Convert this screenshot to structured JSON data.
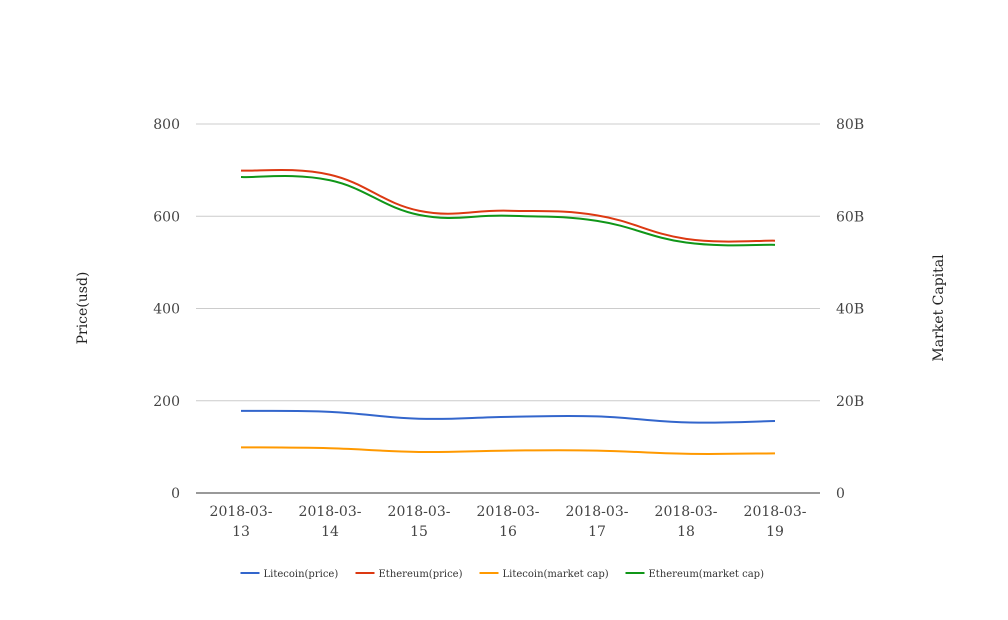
{
  "chart_data": {
    "type": "line",
    "title": "",
    "x_categories": [
      [
        "2018-03-",
        "13"
      ],
      [
        "2018-03-",
        "14"
      ],
      [
        "2018-03-",
        "15"
      ],
      [
        "2018-03-",
        "16"
      ],
      [
        "2018-03-",
        "17"
      ],
      [
        "2018-03-",
        "18"
      ],
      [
        "2018-03-",
        "19"
      ]
    ],
    "y_left": {
      "label": "Price(usd)",
      "range": [
        0,
        800
      ],
      "ticks": [
        "0",
        "200",
        "400",
        "600",
        "800"
      ],
      "tick_values": [
        0,
        200,
        400,
        600,
        800
      ]
    },
    "y_right": {
      "label": "Market Capital",
      "range": [
        0,
        80000000000
      ],
      "ticks": [
        "0",
        "20B",
        "40B",
        "60B",
        "80B"
      ],
      "tick_values": [
        0,
        20000000000,
        40000000000,
        60000000000,
        80000000000
      ]
    },
    "grid": true,
    "legend_position": "bottom",
    "series": [
      {
        "name": "Litecoin(price)",
        "axis": "left",
        "color": "#3366cc",
        "values": [
          178,
          176,
          161,
          165,
          166,
          153,
          156
        ]
      },
      {
        "name": "Ethereum(price)",
        "axis": "left",
        "color": "#dc3912",
        "values": [
          699,
          690,
          612,
          612,
          602,
          551,
          547
        ]
      },
      {
        "name": "Litecoin(market cap)",
        "axis": "right",
        "color": "#ff9900",
        "values": [
          9900000000,
          9700000000,
          8900000000,
          9200000000,
          9200000000,
          8500000000,
          8600000000
        ]
      },
      {
        "name": "Ethereum(market cap)",
        "axis": "right",
        "color": "#109618",
        "values": [
          68500000000,
          67800000000,
          60300000000,
          60100000000,
          59000000000,
          54300000000,
          53800000000
        ]
      }
    ]
  }
}
